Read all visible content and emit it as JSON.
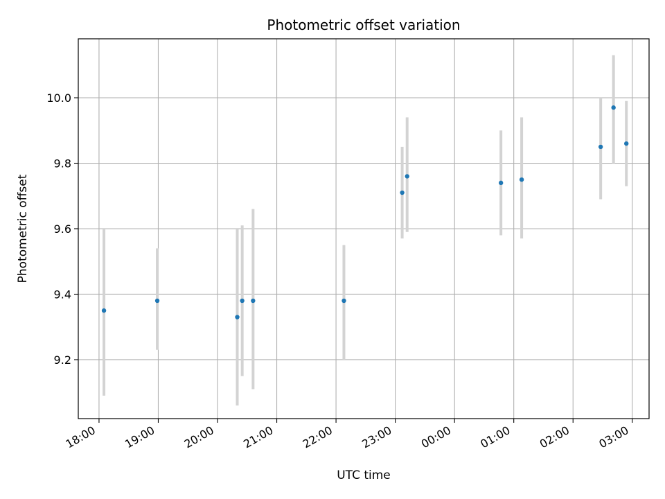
{
  "chart_data": {
    "type": "scatter",
    "title": "Photometric offset variation",
    "xlabel": "UTC time",
    "ylabel": "Photometric offset",
    "x_ticks": [
      "18:00",
      "19:00",
      "20:00",
      "21:00",
      "22:00",
      "23:00",
      "00:00",
      "01:00",
      "02:00",
      "03:00"
    ],
    "y_ticks": [
      "9.2",
      "9.4",
      "9.6",
      "9.8",
      "10.0"
    ],
    "x_tick_hours": [
      18,
      19,
      20,
      21,
      22,
      23,
      24,
      25,
      26,
      27
    ],
    "y_tick_values": [
      9.2,
      9.4,
      9.6,
      9.8,
      10.0
    ],
    "xlim": [
      "17:39",
      "03:17"
    ],
    "ylim": [
      9.02,
      10.18
    ],
    "grid": true,
    "marker_color": "#1f77b4",
    "errorbar_color": "#d3d3d3",
    "points": [
      {
        "x": "18:05",
        "y": 9.35,
        "yerr_low": 9.09,
        "yerr_high": 9.6
      },
      {
        "x": "18:59",
        "y": 9.38,
        "yerr_low": 9.23,
        "yerr_high": 9.54
      },
      {
        "x": "20:20",
        "y": 9.33,
        "yerr_low": 9.06,
        "yerr_high": 9.6
      },
      {
        "x": "20:25",
        "y": 9.38,
        "yerr_low": 9.15,
        "yerr_high": 9.61
      },
      {
        "x": "20:36",
        "y": 9.38,
        "yerr_low": 9.11,
        "yerr_high": 9.66
      },
      {
        "x": "22:08",
        "y": 9.38,
        "yerr_low": 9.2,
        "yerr_high": 9.55
      },
      {
        "x": "23:07",
        "y": 9.71,
        "yerr_low": 9.57,
        "yerr_high": 9.85
      },
      {
        "x": "23:12",
        "y": 9.76,
        "yerr_low": 9.59,
        "yerr_high": 9.94
      },
      {
        "x": "00:47",
        "y": 9.74,
        "yerr_low": 9.58,
        "yerr_high": 9.9
      },
      {
        "x": "01:08",
        "y": 9.75,
        "yerr_low": 9.57,
        "yerr_high": 9.94
      },
      {
        "x": "02:28",
        "y": 9.85,
        "yerr_low": 9.69,
        "yerr_high": 10.0
      },
      {
        "x": "02:41",
        "y": 9.97,
        "yerr_low": 9.8,
        "yerr_high": 10.13
      },
      {
        "x": "02:54",
        "y": 9.86,
        "yerr_low": 9.73,
        "yerr_high": 9.99
      }
    ]
  }
}
